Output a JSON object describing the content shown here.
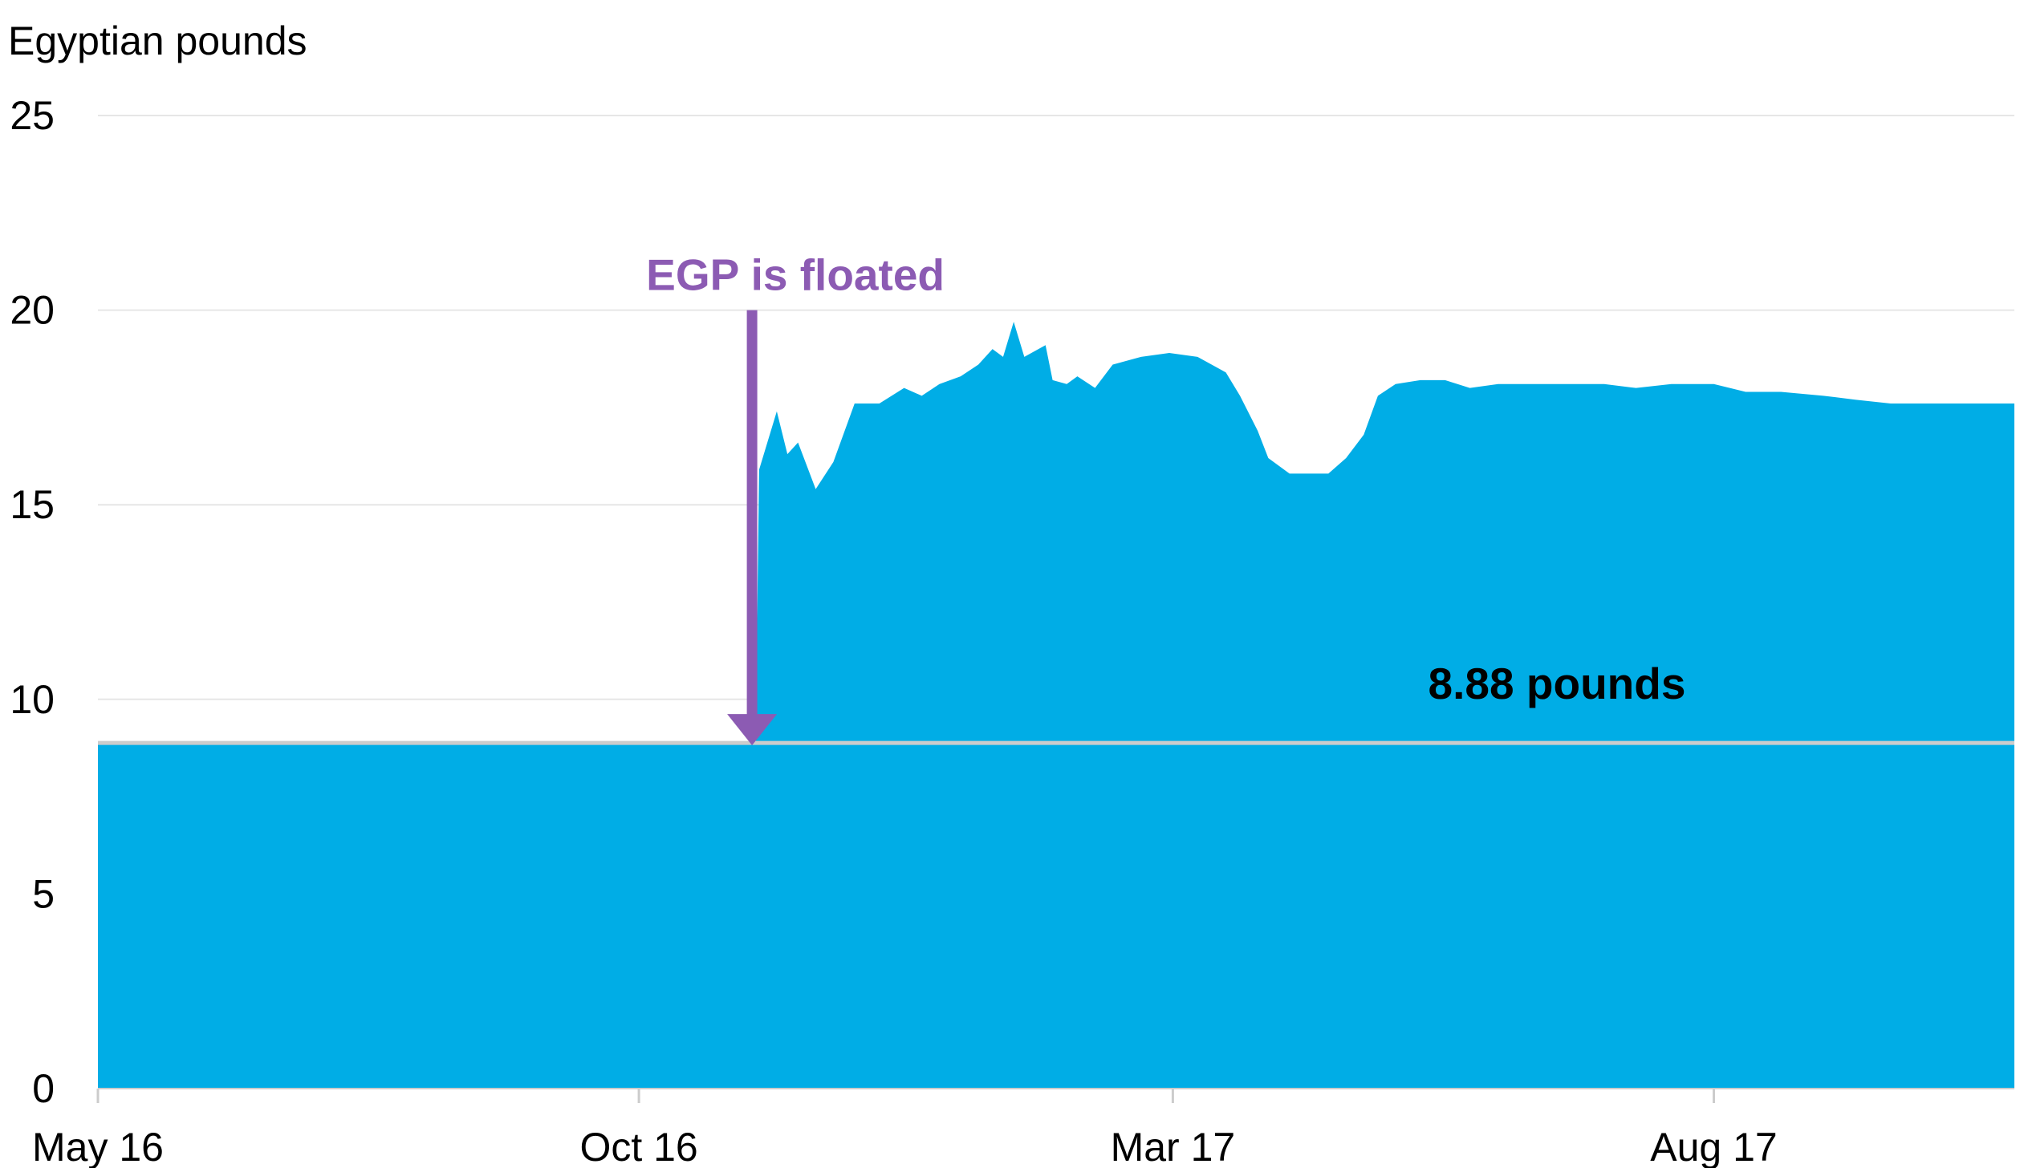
{
  "chart_data": {
    "type": "area",
    "ylabel": "Egyptian pounds",
    "ylim": [
      0,
      25
    ],
    "yticks": [
      "0",
      "5",
      "10",
      "15",
      "20",
      "25"
    ],
    "xticks": [
      {
        "label": "May 16",
        "date": "2016-05-01"
      },
      {
        "label": "Oct 16",
        "date": "2016-10-01"
      },
      {
        "label": "Mar 17",
        "date": "2017-03-01"
      },
      {
        "label": "Aug 17",
        "date": "2017-08-01"
      }
    ],
    "xlim": [
      "2016-05-01",
      "2017-10-25"
    ],
    "grid": true,
    "series": [
      {
        "color": "#00ade6",
        "points": [
          [
            "2016-05-01",
            8.88
          ],
          [
            "2016-10-31",
            8.88
          ],
          [
            "2016-11-03",
            8.88
          ],
          [
            "2016-11-04",
            15.9
          ],
          [
            "2016-11-06",
            16.5
          ],
          [
            "2016-11-09",
            17.4
          ],
          [
            "2016-11-12",
            16.3
          ],
          [
            "2016-11-15",
            16.6
          ],
          [
            "2016-11-20",
            15.4
          ],
          [
            "2016-11-25",
            16.1
          ],
          [
            "2016-12-01",
            17.6
          ],
          [
            "2016-12-08",
            17.6
          ],
          [
            "2016-12-15",
            18.0
          ],
          [
            "2016-12-20",
            17.8
          ],
          [
            "2016-12-25",
            18.1
          ],
          [
            "2016-12-31",
            18.3
          ],
          [
            "2017-01-05",
            18.6
          ],
          [
            "2017-01-09",
            19.0
          ],
          [
            "2017-01-12",
            18.8
          ],
          [
            "2017-01-15",
            19.7
          ],
          [
            "2017-01-18",
            18.8
          ],
          [
            "2017-01-24",
            19.1
          ],
          [
            "2017-01-26",
            18.2
          ],
          [
            "2017-01-30",
            18.1
          ],
          [
            "2017-02-02",
            18.3
          ],
          [
            "2017-02-07",
            18.0
          ],
          [
            "2017-02-12",
            18.6
          ],
          [
            "2017-02-20",
            18.8
          ],
          [
            "2017-02-28",
            18.9
          ],
          [
            "2017-03-08",
            18.8
          ],
          [
            "2017-03-16",
            18.4
          ],
          [
            "2017-03-20",
            17.8
          ],
          [
            "2017-03-25",
            16.9
          ],
          [
            "2017-03-28",
            16.2
          ],
          [
            "2017-04-03",
            15.8
          ],
          [
            "2017-04-08",
            15.8
          ],
          [
            "2017-04-14",
            15.8
          ],
          [
            "2017-04-19",
            16.2
          ],
          [
            "2017-04-24",
            16.8
          ],
          [
            "2017-04-28",
            17.8
          ],
          [
            "2017-05-03",
            18.1
          ],
          [
            "2017-05-10",
            18.2
          ],
          [
            "2017-05-17",
            18.2
          ],
          [
            "2017-05-24",
            18.0
          ],
          [
            "2017-06-01",
            18.1
          ],
          [
            "2017-06-10",
            18.1
          ],
          [
            "2017-06-20",
            18.1
          ],
          [
            "2017-07-01",
            18.1
          ],
          [
            "2017-07-10",
            18.0
          ],
          [
            "2017-07-20",
            18.1
          ],
          [
            "2017-08-01",
            18.1
          ],
          [
            "2017-08-10",
            17.9
          ],
          [
            "2017-08-20",
            17.9
          ],
          [
            "2017-09-01",
            17.8
          ],
          [
            "2017-09-10",
            17.7
          ],
          [
            "2017-09-20",
            17.6
          ],
          [
            "2017-10-01",
            17.6
          ],
          [
            "2017-10-10",
            17.6
          ],
          [
            "2017-10-25",
            17.6
          ]
        ]
      }
    ],
    "reference_line": {
      "value": 8.88,
      "label": "8.88 pounds",
      "color": "#cccccc"
    },
    "annotations": [
      {
        "text": "EGP is floated",
        "x": "2016-11-02",
        "y_from": 20.0,
        "y_to": 8.88,
        "color": "#8c5bb3"
      }
    ]
  }
}
